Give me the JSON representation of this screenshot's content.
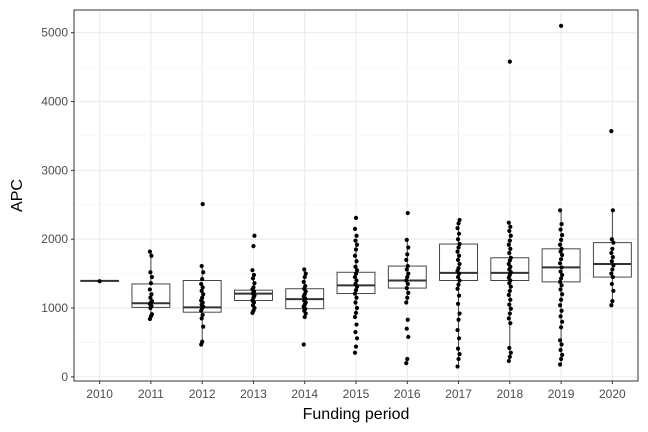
{
  "chart_data": {
    "type": "box",
    "title": "",
    "xlabel": "Funding period",
    "ylabel": "APC",
    "ylim": [
      -60,
      5330
    ],
    "yticks": [
      0,
      1000,
      2000,
      3000,
      4000,
      5000
    ],
    "grid": true,
    "categories": [
      "2010",
      "2011",
      "2012",
      "2013",
      "2014",
      "2015",
      "2016",
      "2017",
      "2018",
      "2019",
      "2020"
    ],
    "boxes": [
      {
        "q1": 1390,
        "median": 1395,
        "q3": 1400,
        "whisker_low": 1390,
        "whisker_high": 1400
      },
      {
        "q1": 1010,
        "median": 1070,
        "q3": 1350,
        "whisker_low": 840,
        "whisker_high": 1820
      },
      {
        "q1": 940,
        "median": 1010,
        "q3": 1400,
        "whisker_low": 470,
        "whisker_high": 1610
      },
      {
        "q1": 1110,
        "median": 1210,
        "q3": 1260,
        "whisker_low": 930,
        "whisker_high": 1480
      },
      {
        "q1": 990,
        "median": 1130,
        "q3": 1280,
        "whisker_low": 870,
        "whisker_high": 1560
      },
      {
        "q1": 1210,
        "median": 1330,
        "q3": 1520,
        "whisker_low": 930,
        "whisker_high": 1980
      },
      {
        "q1": 1290,
        "median": 1400,
        "q3": 1610,
        "whisker_low": 1080,
        "whisker_high": 1990
      },
      {
        "q1": 1400,
        "median": 1510,
        "q3": 1930,
        "whisker_low": 150,
        "whisker_high": 2280
      },
      {
        "q1": 1400,
        "median": 1510,
        "q3": 1730,
        "whisker_low": 230,
        "whisker_high": 2240
      },
      {
        "q1": 1380,
        "median": 1590,
        "q3": 1860,
        "whisker_low": 180,
        "whisker_high": 2420
      },
      {
        "q1": 1450,
        "median": 1640,
        "q3": 1950,
        "whisker_low": 1040,
        "whisker_high": 2420
      }
    ],
    "points": [
      [
        1390
      ],
      [
        840,
        880,
        910,
        1000,
        1030,
        1060,
        1080,
        1100,
        1150,
        1200,
        1270,
        1360,
        1450,
        1520,
        1760,
        1820
      ],
      [
        470,
        510,
        730,
        850,
        900,
        960,
        1000,
        1020,
        1050,
        1080,
        1110,
        1150,
        1200,
        1250,
        1300,
        1350,
        1420,
        1520,
        1610,
        2510
      ],
      [
        930,
        960,
        1000,
        1040,
        1080,
        1110,
        1150,
        1180,
        1210,
        1240,
        1270,
        1300,
        1360,
        1430,
        1480,
        1550,
        1900,
        2050
      ],
      [
        470,
        870,
        920,
        960,
        990,
        1020,
        1050,
        1080,
        1110,
        1140,
        1170,
        1200,
        1240,
        1280,
        1320,
        1380,
        1450,
        1500,
        1560
      ],
      [
        350,
        440,
        560,
        650,
        760,
        870,
        930,
        1000,
        1080,
        1150,
        1210,
        1260,
        1310,
        1350,
        1400,
        1450,
        1500,
        1550,
        1600,
        1680,
        1760,
        1850,
        1920,
        1980,
        2050,
        2150,
        2310
      ],
      [
        200,
        260,
        580,
        700,
        830,
        1080,
        1150,
        1220,
        1290,
        1350,
        1400,
        1450,
        1500,
        1560,
        1610,
        1700,
        1780,
        1880,
        1990,
        2380
      ],
      [
        150,
        260,
        330,
        410,
        560,
        680,
        830,
        920,
        1060,
        1180,
        1280,
        1340,
        1400,
        1450,
        1500,
        1540,
        1580,
        1640,
        1700,
        1760,
        1820,
        1880,
        1930,
        2000,
        2080,
        2160,
        2230,
        2280
      ],
      [
        230,
        290,
        350,
        420,
        780,
        850,
        920,
        990,
        1050,
        1120,
        1190,
        1250,
        1310,
        1360,
        1400,
        1440,
        1480,
        1520,
        1560,
        1600,
        1640,
        1690,
        1730,
        1800,
        1860,
        1920,
        1980,
        2050,
        2120,
        2180,
        2240,
        4580
      ],
      [
        180,
        260,
        320,
        390,
        470,
        530,
        720,
        800,
        880,
        960,
        1040,
        1120,
        1200,
        1270,
        1330,
        1380,
        1430,
        1480,
        1530,
        1590,
        1650,
        1710,
        1770,
        1820,
        1860,
        1920,
        1990,
        2060,
        2140,
        2220,
        2420,
        5100
      ],
      [
        1040,
        1100,
        1250,
        1350,
        1450,
        1500,
        1560,
        1620,
        1680,
        1740,
        1800,
        1860,
        1950,
        2000,
        2420,
        3570
      ]
    ]
  }
}
